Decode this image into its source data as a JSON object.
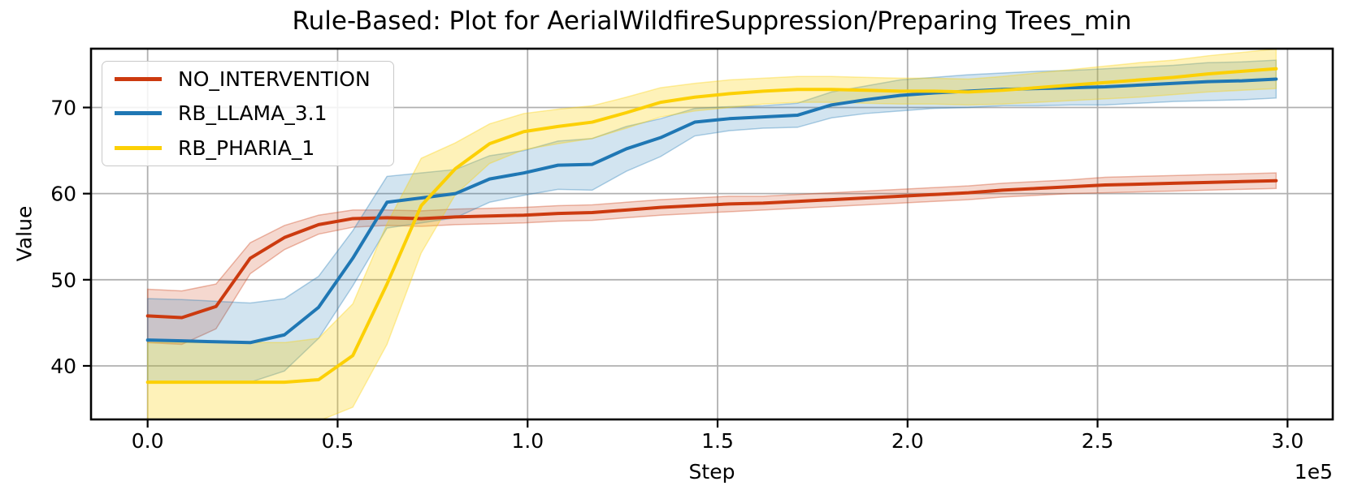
{
  "figure": {
    "title": "Rule-Based: Plot for AerialWildfireSuppression/Preparing Trees_min",
    "xlabel": "Step",
    "ylabel": "Value",
    "offset_text": "1e5"
  },
  "legend": {
    "position": "upper left"
  },
  "chart_data": {
    "type": "line",
    "title": "Rule-Based: Plot for AerialWildfireSuppression/Preparing Trees_min",
    "xlabel": "Step",
    "ylabel": "Value",
    "x_scale_note": "x values in units of 1e5 steps",
    "grid": true,
    "grid_color": "#b0b0b0",
    "legend_position": "upper left",
    "xlim": [
      -0.149,
      3.119
    ],
    "ylim": [
      33.78,
      76.83
    ],
    "xtick_values": [
      0.0,
      0.5,
      1.0,
      1.5,
      2.0,
      2.5,
      3.0
    ],
    "xtick_labels": [
      "0.0",
      "0.5",
      "1.0",
      "1.5",
      "2.0",
      "2.5",
      "3.0"
    ],
    "ytick_values": [
      40,
      50,
      60,
      70
    ],
    "ytick_labels": [
      "40",
      "50",
      "60",
      "70"
    ],
    "x": [
      0.0,
      0.09,
      0.18,
      0.27,
      0.36,
      0.45,
      0.54,
      0.63,
      0.72,
      0.81,
      0.9,
      0.99,
      1.08,
      1.17,
      1.26,
      1.35,
      1.44,
      1.53,
      1.62,
      1.71,
      1.8,
      1.89,
      1.98,
      2.07,
      2.16,
      2.25,
      2.34,
      2.43,
      2.52,
      2.61,
      2.7,
      2.79,
      2.88,
      2.97
    ],
    "series": [
      {
        "name": "NO_INTERVENTION",
        "color": "#cc3a0f",
        "band_opacity": 0.2,
        "values": [
          45.8,
          45.6,
          46.9,
          52.5,
          54.9,
          56.4,
          57.1,
          57.2,
          57.1,
          57.3,
          57.4,
          57.5,
          57.7,
          57.8,
          58.1,
          58.4,
          58.6,
          58.8,
          58.9,
          59.1,
          59.3,
          59.5,
          59.7,
          59.9,
          60.1,
          60.4,
          60.6,
          60.8,
          61.0,
          61.1,
          61.2,
          61.3,
          61.4,
          61.5
        ],
        "band_upper": [
          48.9,
          48.7,
          49.5,
          54.3,
          56.3,
          57.5,
          58.1,
          58.1,
          58.0,
          58.2,
          58.3,
          58.4,
          58.6,
          58.7,
          59.0,
          59.3,
          59.5,
          59.7,
          59.7,
          59.9,
          60.1,
          60.3,
          60.5,
          60.7,
          60.9,
          61.2,
          61.4,
          61.6,
          61.9,
          62.0,
          62.1,
          62.2,
          62.3,
          62.4
        ],
        "band_lower": [
          42.7,
          42.5,
          44.3,
          50.7,
          53.5,
          55.3,
          56.1,
          56.3,
          56.2,
          56.4,
          56.5,
          56.6,
          56.8,
          56.9,
          57.2,
          57.5,
          57.7,
          57.9,
          58.1,
          58.3,
          58.5,
          58.7,
          58.9,
          59.1,
          59.3,
          59.6,
          59.8,
          60.0,
          60.1,
          60.2,
          60.3,
          60.4,
          60.5,
          60.6
        ]
      },
      {
        "name": "RB_LLAMA_3.1",
        "color": "#1f77b4",
        "band_opacity": 0.2,
        "values": [
          43.0,
          42.9,
          42.8,
          42.7,
          43.6,
          46.8,
          52.5,
          59.0,
          59.5,
          60.0,
          61.7,
          62.4,
          63.3,
          63.4,
          65.2,
          66.5,
          68.3,
          68.7,
          68.9,
          69.1,
          70.3,
          70.9,
          71.4,
          71.7,
          71.9,
          72.1,
          72.2,
          72.3,
          72.4,
          72.6,
          72.8,
          73.0,
          73.1,
          73.3
        ],
        "band_upper": [
          47.8,
          47.7,
          47.5,
          47.3,
          47.8,
          50.4,
          55.7,
          62.0,
          62.4,
          62.8,
          64.4,
          65.0,
          66.1,
          66.4,
          67.8,
          68.7,
          69.9,
          70.1,
          70.2,
          70.5,
          71.8,
          72.5,
          73.2,
          73.5,
          73.8,
          74.0,
          74.2,
          74.3,
          74.5,
          74.7,
          74.9,
          75.2,
          75.3,
          75.5
        ],
        "band_lower": [
          38.2,
          38.1,
          38.1,
          38.1,
          39.4,
          43.2,
          49.3,
          56.0,
          56.6,
          57.2,
          59.0,
          59.8,
          60.5,
          60.4,
          62.6,
          64.3,
          66.7,
          67.3,
          67.6,
          67.7,
          68.8,
          69.3,
          69.6,
          69.9,
          70.0,
          70.2,
          70.2,
          70.3,
          70.3,
          70.5,
          70.7,
          70.8,
          70.9,
          71.1
        ]
      },
      {
        "name": "RB_PHARIA_1",
        "color": "#fcd005",
        "band_opacity": 0.28,
        "values": [
          38.1,
          38.1,
          38.1,
          38.1,
          38.1,
          38.4,
          41.2,
          49.5,
          58.6,
          62.9,
          65.8,
          67.2,
          67.8,
          68.3,
          69.4,
          70.6,
          71.2,
          71.6,
          71.9,
          72.1,
          72.1,
          72.0,
          71.9,
          71.9,
          71.8,
          72.0,
          72.3,
          72.6,
          72.9,
          73.2,
          73.5,
          73.9,
          74.2,
          74.5
        ],
        "band_upper": [
          42.7,
          42.7,
          42.7,
          42.7,
          42.7,
          43.2,
          47.2,
          56.5,
          64.1,
          65.9,
          68.1,
          69.3,
          69.8,
          70.2,
          71.2,
          72.3,
          72.8,
          73.2,
          73.4,
          73.6,
          73.6,
          73.5,
          73.4,
          73.4,
          73.3,
          73.6,
          74.0,
          74.4,
          74.8,
          75.2,
          75.5,
          76.0,
          76.4,
          76.8
        ],
        "band_lower": [
          33.5,
          33.5,
          33.5,
          33.5,
          33.5,
          33.6,
          35.2,
          42.5,
          53.1,
          59.9,
          63.5,
          65.1,
          65.8,
          66.4,
          67.6,
          68.9,
          69.6,
          70.0,
          70.4,
          70.6,
          70.6,
          70.5,
          70.4,
          70.4,
          70.3,
          70.4,
          70.6,
          70.8,
          71.0,
          71.2,
          71.5,
          71.8,
          72.0,
          72.2
        ]
      }
    ]
  }
}
